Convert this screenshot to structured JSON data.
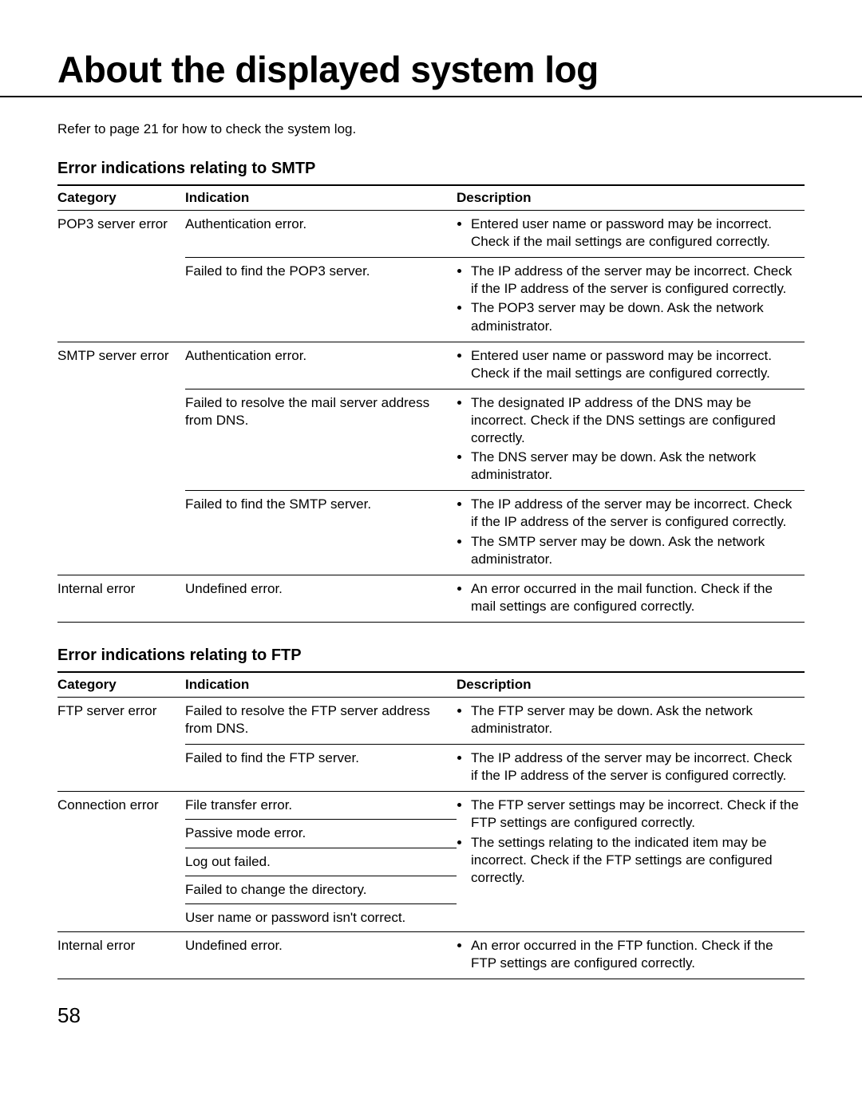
{
  "title": "About the displayed system log",
  "intro": "Refer to page 21 for how to check the system log.",
  "page_number": "58",
  "smtp": {
    "heading": "Error indications relating to SMTP",
    "headers": {
      "category": "Category",
      "indication": "Indication",
      "description": "Description"
    },
    "rows": [
      {
        "category": "POP3 server error",
        "indication": "Authentication error.",
        "desc": [
          "Entered user name or password may be incorrect. Check if the mail settings are configured correctly."
        ]
      },
      {
        "category": "",
        "indication": "Failed to find the POP3 server.",
        "desc": [
          "The IP address of the server may be incorrect. Check if the IP address of the server is configured correctly.",
          "The POP3 server may be down. Ask the network administrator."
        ]
      },
      {
        "category": "SMTP server error",
        "indication": "Authentication error.",
        "desc": [
          "Entered user name or password may be incorrect. Check if the mail settings are configured correctly."
        ]
      },
      {
        "category": "",
        "indication": "Failed to resolve the mail server address from DNS.",
        "desc": [
          "The designated IP address of the DNS may be incorrect. Check if the DNS settings are configured correctly.",
          "The DNS server may be down. Ask the network administrator."
        ]
      },
      {
        "category": "",
        "indication": "Failed to find the SMTP server.",
        "desc": [
          "The IP address of the server may be incorrect. Check if the IP address of the server is configured correctly.",
          "The SMTP server may be down. Ask the network administrator."
        ]
      },
      {
        "category": "Internal error",
        "indication": "Undefined error.",
        "desc": [
          "An error occurred in the mail function. Check if the mail settings are configured correctly."
        ]
      }
    ]
  },
  "ftp": {
    "heading": "Error indications relating to FTP",
    "headers": {
      "category": "Category",
      "indication": "Indication",
      "description": "Description"
    },
    "group1": {
      "category": "FTP server error",
      "r1_ind": "Failed to resolve the FTP server address from DNS.",
      "r1_desc": [
        "The FTP server may be down. Ask the network administrator."
      ],
      "r2_ind": "Failed to find the FTP server.",
      "r2_desc": [
        "The IP address of the server may be incorrect. Check if the IP address of the server is configured correctly."
      ]
    },
    "group2": {
      "category": "Connection error",
      "indications": [
        "File transfer error.",
        "Passive mode error.",
        "Log out failed.",
        "Failed to change the directory.",
        "User name or password isn't correct."
      ],
      "desc": [
        "The FTP server settings may be incorrect. Check if the FTP settings are configured correctly.",
        "The settings relating to the indicated item may be incorrect. Check if the FTP settings are configured correctly."
      ]
    },
    "group3": {
      "category": "Internal error",
      "indication": "Undefined error.",
      "desc": [
        "An error occurred in the FTP function. Check if the FTP settings are configured correctly."
      ]
    }
  }
}
